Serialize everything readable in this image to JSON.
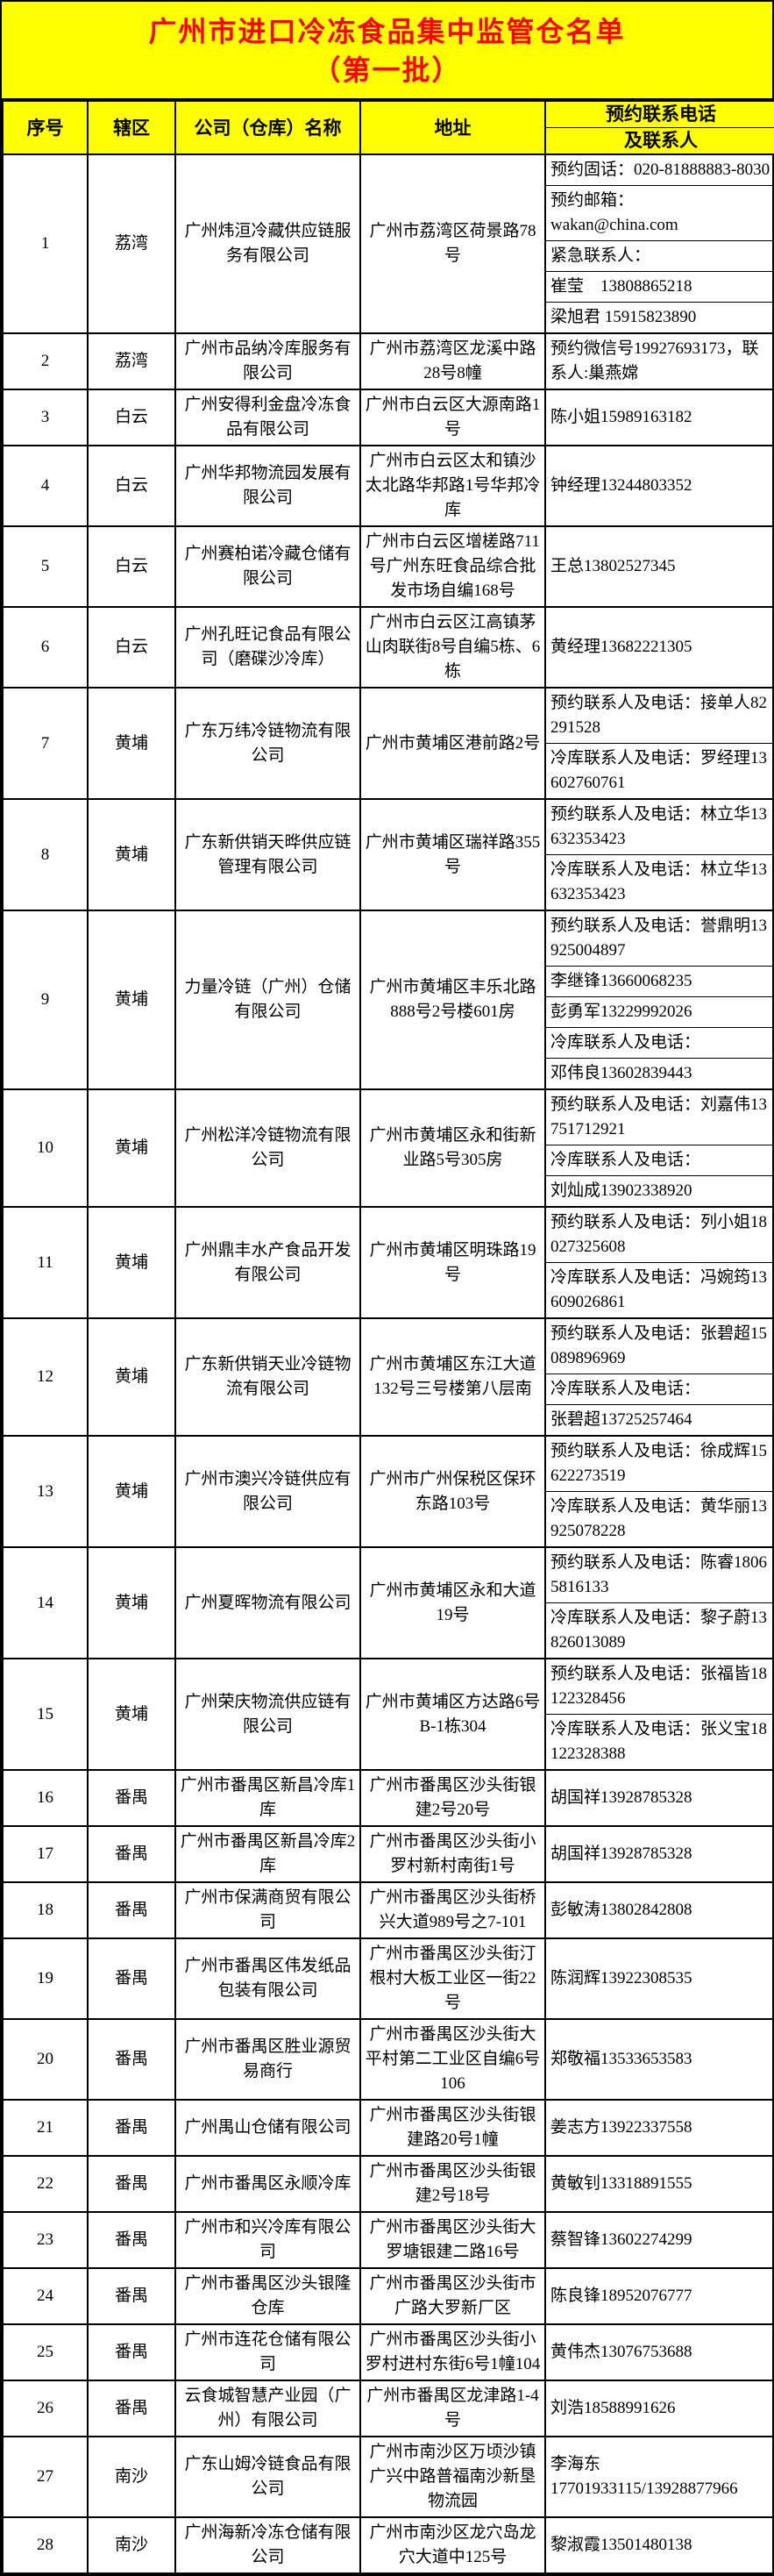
{
  "title": {
    "line1": "广州市进口冷冻食品集中监管仓名单",
    "line2": "（第一批）"
  },
  "columns": {
    "no": "序号",
    "district": "辖区",
    "company": "公司（仓库）名称",
    "address": "地址",
    "contact_line1": "预约联系电话",
    "contact_line2": "及联系人"
  },
  "colors": {
    "header_bg": "#ffff00",
    "title_text": "#ff0000",
    "border": "#000000",
    "body_bg": "#ffffff"
  },
  "rows": [
    {
      "no": "1",
      "district": "荔湾",
      "company": "广州炜洹冷藏供应链服务有限公司",
      "address": "广州市荔湾区荷景路78号",
      "contacts": [
        "预约固话：020-81888883-8030",
        "预约邮箱：\nwakan@china.com",
        "紧急联系人：",
        "崔莹　13808865218",
        "梁旭君 15915823890"
      ]
    },
    {
      "no": "2",
      "district": "荔湾",
      "company": "广州市品纳冷库服务有限公司",
      "address": "广州市荔湾区龙溪中路28号8幢",
      "contacts": [
        "预约微信号19927693173，联系人:巢燕嫦"
      ]
    },
    {
      "no": "3",
      "district": "白云",
      "company": "广州安得利金盘冷冻食品有限公司",
      "address": "广州市白云区大源南路1号",
      "contacts": [
        "陈小姐15989163182"
      ]
    },
    {
      "no": "4",
      "district": "白云",
      "company": "广州华邦物流园发展有限公司",
      "address": "广州市白云区太和镇沙太北路华邦路1号华邦冷库",
      "contacts": [
        "钟经理13244803352"
      ]
    },
    {
      "no": "5",
      "district": "白云",
      "company": "广州赛柏诺冷藏仓储有限公司",
      "address": "广州市白云区增槎路711号广州东旺食品综合批发市场自编168号",
      "contacts": [
        "王总13802527345"
      ]
    },
    {
      "no": "6",
      "district": "白云",
      "company": "广州孔旺记食品有限公司（磨碟沙冷库）",
      "address": "广州市白云区江高镇茅山肉联街8号自编5栋、6栋",
      "contacts": [
        "黄经理13682221305"
      ]
    },
    {
      "no": "7",
      "district": "黄埔",
      "company": "广东万纬冷链物流有限公司",
      "address": "广州市黄埔区港前路2号",
      "contacts": [
        "预约联系人及电话：接单人82291528",
        "冷库联系人及电话：罗经理13602760761"
      ]
    },
    {
      "no": "8",
      "district": "黄埔",
      "company": "广东新供销天晔供应链管理有限公司",
      "address": "广州市黄埔区瑞祥路355号",
      "contacts": [
        "预约联系人及电话：林立华13632353423",
        "冷库联系人及电话：林立华13632353423"
      ]
    },
    {
      "no": "9",
      "district": "黄埔",
      "company": "力量冷链（广州）仓储有限公司",
      "address": "广州市黄埔区丰乐北路888号2号楼601房",
      "contacts": [
        "预约联系人及电话：誉鼎明13925004897",
        "李继锋13660068235",
        "彭勇军13229992026",
        "冷库联系人及电话：",
        "邓伟良13602839443"
      ]
    },
    {
      "no": "10",
      "district": "黄埔",
      "company": "广州松洋冷链物流有限公司",
      "address": "广州市黄埔区永和街新业路5号305房",
      "contacts": [
        "预约联系人及电话：刘嘉伟13751712921",
        "冷库联系人及电话：",
        "刘灿成13902338920"
      ]
    },
    {
      "no": "11",
      "district": "黄埔",
      "company": "广州鼎丰水产食品开发有限公司",
      "address": "广州市黄埔区明珠路19号",
      "contacts": [
        "预约联系人及电话：列小姐18027325608",
        "冷库联系人及电话：冯婉筠13609026861"
      ]
    },
    {
      "no": "12",
      "district": "黄埔",
      "company": "广东新供销天业冷链物流有限公司",
      "address": "广州市黄埔区东江大道132号三号楼第八层南",
      "contacts": [
        "预约联系人及电话：张碧超15089896969",
        "冷库联系人及电话：",
        "张碧超13725257464"
      ]
    },
    {
      "no": "13",
      "district": "黄埔",
      "company": "广州市澳兴冷链供应有限公司",
      "address": "广州市广州保税区保环东路103号",
      "contacts": [
        "预约联系人及电话：徐成辉15622273519",
        "冷库联系人及电话：黄华丽13925078228"
      ]
    },
    {
      "no": "14",
      "district": "黄埔",
      "company": "广州夏晖物流有限公司",
      "address": "广州市黄埔区永和大道19号",
      "contacts": [
        "预约联系人及电话：陈睿18065816133",
        "冷库联系人及电话：黎子蔚13826013089"
      ]
    },
    {
      "no": "15",
      "district": "黄埔",
      "company": "广州荣庆物流供应链有限公司",
      "address": "广州市黄埔区方达路6号B-1栋304",
      "contacts": [
        "预约联系人及电话：张福皆18122328456",
        "冷库联系人及电话：张义宝18122328388"
      ]
    },
    {
      "no": "16",
      "district": "番禺",
      "company": "广州市番禺区新昌冷库1库",
      "address": "广州市番禺区沙头街银建2号20号",
      "contacts": [
        "胡国祥13928785328"
      ]
    },
    {
      "no": "17",
      "district": "番禺",
      "company": "广州市番禺区新昌冷库2库",
      "address": "广州市番禺区沙头街小罗村新村南街1号",
      "contacts": [
        "胡国祥13928785328"
      ]
    },
    {
      "no": "18",
      "district": "番禺",
      "company": "广州市保满商贸有限公司",
      "address": "广州市番禺区沙头街桥兴大道989号之7-101",
      "contacts": [
        "彭敏涛13802842808"
      ]
    },
    {
      "no": "19",
      "district": "番禺",
      "company": "广州市番禺区伟发纸品包装有限公司",
      "address": "广州市番禺区沙头街汀根村大板工业区一街22号",
      "contacts": [
        "陈润辉13922308535"
      ]
    },
    {
      "no": "20",
      "district": "番禺",
      "company": "广州市番禺区胜业源贸易商行",
      "address": "广州市番禺区沙头街大平村第二工业区自编6号106",
      "contacts": [
        "郑敬福13533653583"
      ]
    },
    {
      "no": "21",
      "district": "番禺",
      "company": "广州禺山仓储有限公司",
      "address": "广州市番禺区沙头街银建路20号1幢",
      "contacts": [
        "姜志方13922337558"
      ]
    },
    {
      "no": "22",
      "district": "番禺",
      "company": "广州市番禺区永顺冷库",
      "address": "广州市番禺区沙头街银建2号18号",
      "contacts": [
        "黄敏钊13318891555"
      ]
    },
    {
      "no": "23",
      "district": "番禺",
      "company": "广州市和兴冷库有限公司",
      "address": "广州市番禺区沙头街大罗塘银建二路16号",
      "contacts": [
        "蔡智锋13602274299"
      ]
    },
    {
      "no": "24",
      "district": "番禺",
      "company": "广州市番禺区沙头银隆仓库",
      "address": "广州市番禺区沙头街市广路大罗新厂区",
      "contacts": [
        "陈良锋18952076777"
      ]
    },
    {
      "no": "25",
      "district": "番禺",
      "company": "广州市连花仓储有限公司",
      "address": "广州市番禺区沙头街小罗村进村东街6号1幢104",
      "contacts": [
        "黄伟杰13076753688"
      ]
    },
    {
      "no": "26",
      "district": "番禺",
      "company": "云食城智慧产业园（广州）有限公司",
      "address": "广州市番禺区龙津路1-4号",
      "contacts": [
        "刘浩18588991626"
      ]
    },
    {
      "no": "27",
      "district": "南沙",
      "company": "广东山姆冷链食品有限公司",
      "address": "广州市南沙区万顷沙镇广兴中路普福南沙新垦物流园",
      "contacts": [
        "李海东\n17701933115/13928877966"
      ]
    },
    {
      "no": "28",
      "district": "南沙",
      "company": "广州海新冷冻仓储有限公司",
      "address": "广州市南沙区龙穴岛龙穴大道中125号",
      "contacts": [
        "黎淑霞13501480138"
      ]
    }
  ]
}
